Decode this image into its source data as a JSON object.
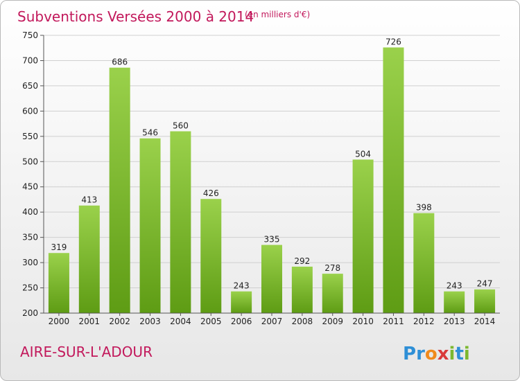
{
  "chart_data": {
    "type": "bar",
    "title": "Subventions Versées 2000 à 2014",
    "subtitle": "(en milliers d'€)",
    "categories": [
      "2000",
      "2001",
      "2002",
      "2003",
      "2004",
      "2005",
      "2006",
      "2007",
      "2008",
      "2009",
      "2010",
      "2011",
      "2012",
      "2013",
      "2014"
    ],
    "values": [
      319,
      413,
      686,
      546,
      560,
      426,
      243,
      335,
      292,
      278,
      504,
      726,
      398,
      243,
      247
    ],
    "ylim": [
      200,
      750
    ],
    "yticks": [
      200,
      250,
      300,
      350,
      400,
      450,
      500,
      550,
      600,
      650,
      700,
      750
    ],
    "grid": true,
    "xlabel": "",
    "ylabel": ""
  },
  "footer": {
    "city": "AIRE-SUR-L'ADOUR",
    "brand_letters": [
      "P",
      "r",
      "o",
      "x",
      "i",
      "t",
      "i"
    ],
    "brand_colors": [
      "#2e8fd6",
      "#2e8fd6",
      "#f08a1c",
      "#d93a3a",
      "#7cb82f",
      "#2e8fd6",
      "#7cb82f"
    ]
  },
  "colors": {
    "title": "#c2185b",
    "bar_light": "#9ad14b",
    "bar_dark": "#5e9c14",
    "grid": "#cfcfcf"
  }
}
